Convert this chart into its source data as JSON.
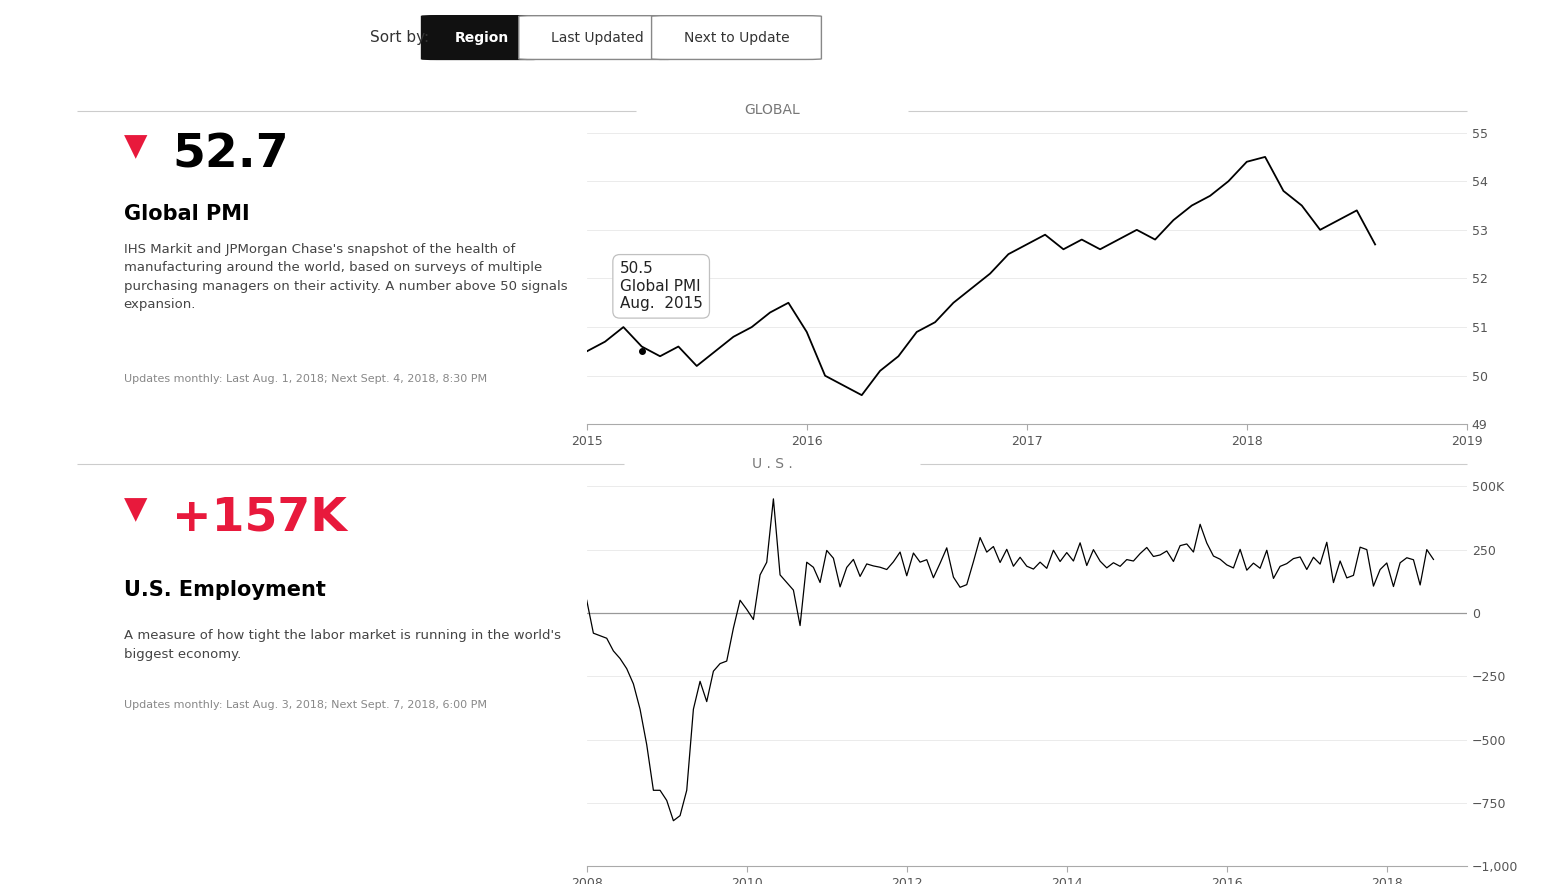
{
  "bg_color": "#ffffff",
  "header_text": "Sort by:",
  "header_buttons": [
    "Region",
    "Last Updated",
    "Next to Update"
  ],
  "section1_label": "GLOBAL",
  "section2_label": "U . S .",
  "panel1": {
    "value": "52.7",
    "title": "Global PMI",
    "description": "IHS Markit and JPMorgan Chase's snapshot of the health of\nmanufacturing around the world, based on surveys of multiple\npurchasing managers on their activity. A number above 50 signals\nexpansion.",
    "update_text": "Updates monthly: Last Aug. 1, 2018; Next Sept. 4, 2018, 8:30 PM",
    "tooltip_value": "50.5",
    "tooltip_label": "Global PMI",
    "tooltip_date": "Aug.  2015",
    "chart_xlim": [
      2015.0,
      2019.0
    ],
    "chart_ylim": [
      49,
      55
    ],
    "chart_yticks": [
      49,
      50,
      51,
      52,
      53,
      54,
      55
    ],
    "chart_xticks": [
      2015,
      2016,
      2017,
      2018,
      2019
    ],
    "line_color": "#000000"
  },
  "panel2": {
    "value": "+157K",
    "title": "U.S. Employment",
    "description": "A measure of how tight the labor market is running in the world's\nbiggest economy.",
    "update_text": "Updates monthly: Last Aug. 3, 2018; Next Sept. 7, 2018, 6:00 PM",
    "chart_xlim": [
      2008.0,
      2019.0
    ],
    "chart_ylim": [
      -1000,
      500
    ],
    "chart_yticks": [
      -1000,
      -750,
      -500,
      -250,
      0,
      250,
      500
    ],
    "chart_ytick_labels": [
      "−1,000",
      "−750",
      "−500",
      "−250",
      "0",
      "250",
      "500K"
    ],
    "chart_xticks": [
      2008,
      2010,
      2012,
      2014,
      2016,
      2018
    ],
    "line_color": "#000000",
    "zero_line_color": "#999999"
  },
  "value_color": "#000000",
  "arrow_color": "#e8193c",
  "title_color": "#000000",
  "desc_color": "#444444",
  "update_color": "#888888",
  "section_label_color": "#777777",
  "divider_color": "#cccccc"
}
